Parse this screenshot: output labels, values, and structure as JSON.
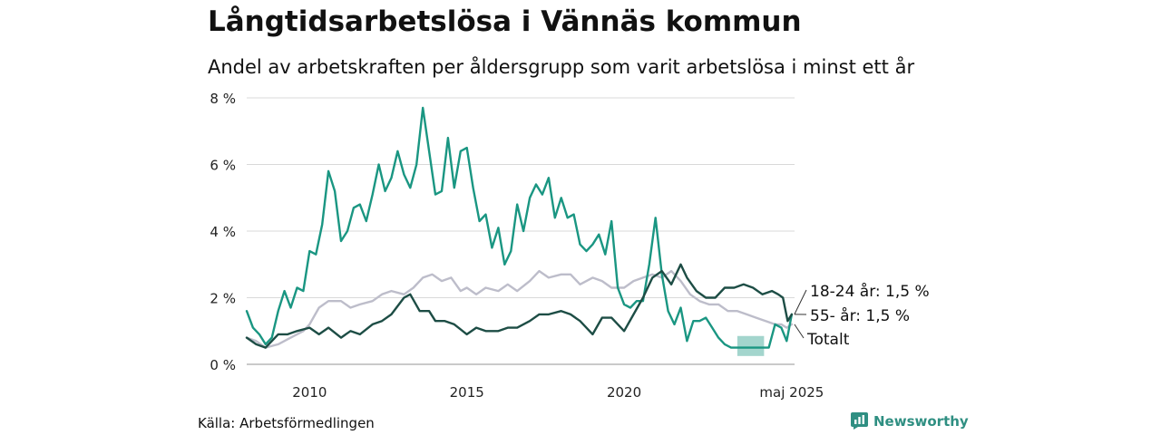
{
  "title": "Långtidsarbetslösa i Vännäs kommun",
  "subtitle": "Andel av arbetskraften per åldersgrupp som varit arbetslösa i minst ett år",
  "source": "Källa: Arbetsförmedlingen",
  "brand": {
    "name": "Newsworthy",
    "icon": "bar-chart-logo-icon",
    "color": "#2f8f82"
  },
  "chart_data": {
    "type": "line",
    "y_tick_labels": [
      "0 %",
      "2 %",
      "4 %",
      "6 %",
      "8 %"
    ],
    "y_ticks": [
      0,
      2,
      4,
      6,
      8
    ],
    "ylim": [
      0,
      8
    ],
    "x_tick_labels": [
      "2010",
      "2015",
      "2020",
      "maj 2025"
    ],
    "x_ticks": [
      2010,
      2015,
      2020,
      2025.33
    ],
    "xlim": [
      2008.0,
      2025.42
    ],
    "grid": true,
    "colors": {
      "grid": "#d9d9d9",
      "axis": "#aaaaaa"
    },
    "series": [
      {
        "name": "Totalt",
        "end_label": "Totalt",
        "color": "#bdbdca",
        "x": [
          2008.0,
          2008.3,
          2008.6,
          2009.0,
          2009.4,
          2009.8,
          2010.0,
          2010.3,
          2010.6,
          2011.0,
          2011.3,
          2011.6,
          2012.0,
          2012.3,
          2012.6,
          2013.0,
          2013.3,
          2013.6,
          2013.9,
          2014.2,
          2014.5,
          2014.8,
          2015.0,
          2015.3,
          2015.6,
          2016.0,
          2016.3,
          2016.6,
          2017.0,
          2017.3,
          2017.6,
          2018.0,
          2018.3,
          2018.6,
          2019.0,
          2019.3,
          2019.6,
          2020.0,
          2020.3,
          2020.6,
          2020.9,
          2021.2,
          2021.5,
          2021.8,
          2022.1,
          2022.4,
          2022.7,
          2023.0,
          2023.3,
          2023.6,
          2023.9,
          2024.2,
          2024.5,
          2024.8,
          2025.0,
          2025.17,
          2025.33
        ],
        "y": [
          0.8,
          0.7,
          0.5,
          0.6,
          0.8,
          1.0,
          1.2,
          1.7,
          1.9,
          1.9,
          1.7,
          1.8,
          1.9,
          2.1,
          2.2,
          2.1,
          2.3,
          2.6,
          2.7,
          2.5,
          2.6,
          2.2,
          2.3,
          2.1,
          2.3,
          2.2,
          2.4,
          2.2,
          2.5,
          2.8,
          2.6,
          2.7,
          2.7,
          2.4,
          2.6,
          2.5,
          2.3,
          2.3,
          2.5,
          2.6,
          2.7,
          2.6,
          2.8,
          2.5,
          2.1,
          1.9,
          1.8,
          1.8,
          1.6,
          1.6,
          1.5,
          1.4,
          1.3,
          1.2,
          1.2,
          1.1,
          1.2
        ]
      },
      {
        "name": "18-24 år",
        "end_label": "18-24 år: 1,5 %",
        "color": "#1a9682",
        "x": [
          2008.0,
          2008.2,
          2008.4,
          2008.6,
          2008.8,
          2009.0,
          2009.2,
          2009.4,
          2009.6,
          2009.8,
          2010.0,
          2010.2,
          2010.4,
          2010.6,
          2010.8,
          2011.0,
          2011.2,
          2011.4,
          2011.6,
          2011.8,
          2012.0,
          2012.2,
          2012.4,
          2012.6,
          2012.8,
          2013.0,
          2013.2,
          2013.4,
          2013.6,
          2013.8,
          2014.0,
          2014.2,
          2014.4,
          2014.6,
          2014.8,
          2015.0,
          2015.2,
          2015.4,
          2015.6,
          2015.8,
          2016.0,
          2016.2,
          2016.4,
          2016.6,
          2016.8,
          2017.0,
          2017.2,
          2017.4,
          2017.6,
          2017.8,
          2018.0,
          2018.2,
          2018.4,
          2018.6,
          2018.8,
          2019.0,
          2019.2,
          2019.4,
          2019.6,
          2019.8,
          2020.0,
          2020.2,
          2020.4,
          2020.6,
          2020.8,
          2021.0,
          2021.2,
          2021.4,
          2021.6,
          2021.8,
          2022.0,
          2022.2,
          2022.4,
          2022.6,
          2022.8,
          2023.0,
          2023.2,
          2023.4,
          2023.6,
          2023.8,
          2024.0,
          2024.2,
          2024.4,
          2024.6,
          2024.8,
          2025.0,
          2025.17,
          2025.33
        ],
        "y": [
          1.6,
          1.1,
          0.9,
          0.6,
          0.8,
          1.6,
          2.2,
          1.7,
          2.3,
          2.2,
          3.4,
          3.3,
          4.2,
          5.8,
          5.2,
          3.7,
          4.0,
          4.7,
          4.8,
          4.3,
          5.1,
          6.0,
          5.2,
          5.6,
          6.4,
          5.7,
          5.3,
          6.0,
          7.7,
          6.4,
          5.1,
          5.2,
          6.8,
          5.3,
          6.4,
          6.5,
          5.3,
          4.3,
          4.5,
          3.5,
          4.1,
          3.0,
          3.4,
          4.8,
          4.0,
          5.0,
          5.4,
          5.1,
          5.6,
          4.4,
          5.0,
          4.4,
          4.5,
          3.6,
          3.4,
          3.6,
          3.9,
          3.3,
          4.3,
          2.3,
          1.8,
          1.7,
          1.9,
          1.9,
          3.0,
          4.4,
          2.7,
          1.6,
          1.2,
          1.7,
          0.7,
          1.3,
          1.3,
          1.4,
          1.1,
          0.8,
          0.6,
          0.5,
          0.5,
          0.5,
          0.5,
          0.5,
          0.5,
          0.5,
          1.2,
          1.1,
          0.7,
          1.5
        ],
        "band": {
          "x_start": 2023.6,
          "x_end": 2024.45,
          "low": 0.25,
          "high": 0.85
        }
      },
      {
        "name": "55- år",
        "end_label": "55- år: 1,5 %",
        "color": "#1d4d45",
        "x": [
          2008.0,
          2008.3,
          2008.6,
          2009.0,
          2009.3,
          2009.6,
          2010.0,
          2010.3,
          2010.6,
          2011.0,
          2011.3,
          2011.6,
          2012.0,
          2012.3,
          2012.6,
          2013.0,
          2013.2,
          2013.5,
          2013.8,
          2014.0,
          2014.3,
          2014.6,
          2015.0,
          2015.3,
          2015.6,
          2016.0,
          2016.3,
          2016.6,
          2017.0,
          2017.3,
          2017.6,
          2018.0,
          2018.3,
          2018.6,
          2019.0,
          2019.3,
          2019.6,
          2020.0,
          2020.3,
          2020.6,
          2020.9,
          2021.2,
          2021.5,
          2021.8,
          2022.0,
          2022.3,
          2022.6,
          2022.9,
          2023.2,
          2023.5,
          2023.8,
          2024.1,
          2024.4,
          2024.7,
          2024.9,
          2025.05,
          2025.2,
          2025.33
        ],
        "y": [
          0.8,
          0.6,
          0.5,
          0.9,
          0.9,
          1.0,
          1.1,
          0.9,
          1.1,
          0.8,
          1.0,
          0.9,
          1.2,
          1.3,
          1.5,
          2.0,
          2.1,
          1.6,
          1.6,
          1.3,
          1.3,
          1.2,
          0.9,
          1.1,
          1.0,
          1.0,
          1.1,
          1.1,
          1.3,
          1.5,
          1.5,
          1.6,
          1.5,
          1.3,
          0.9,
          1.4,
          1.4,
          1.0,
          1.5,
          2.0,
          2.6,
          2.8,
          2.4,
          3.0,
          2.6,
          2.2,
          2.0,
          2.0,
          2.3,
          2.3,
          2.4,
          2.3,
          2.1,
          2.2,
          2.1,
          2.0,
          1.3,
          1.5
        ]
      }
    ]
  }
}
